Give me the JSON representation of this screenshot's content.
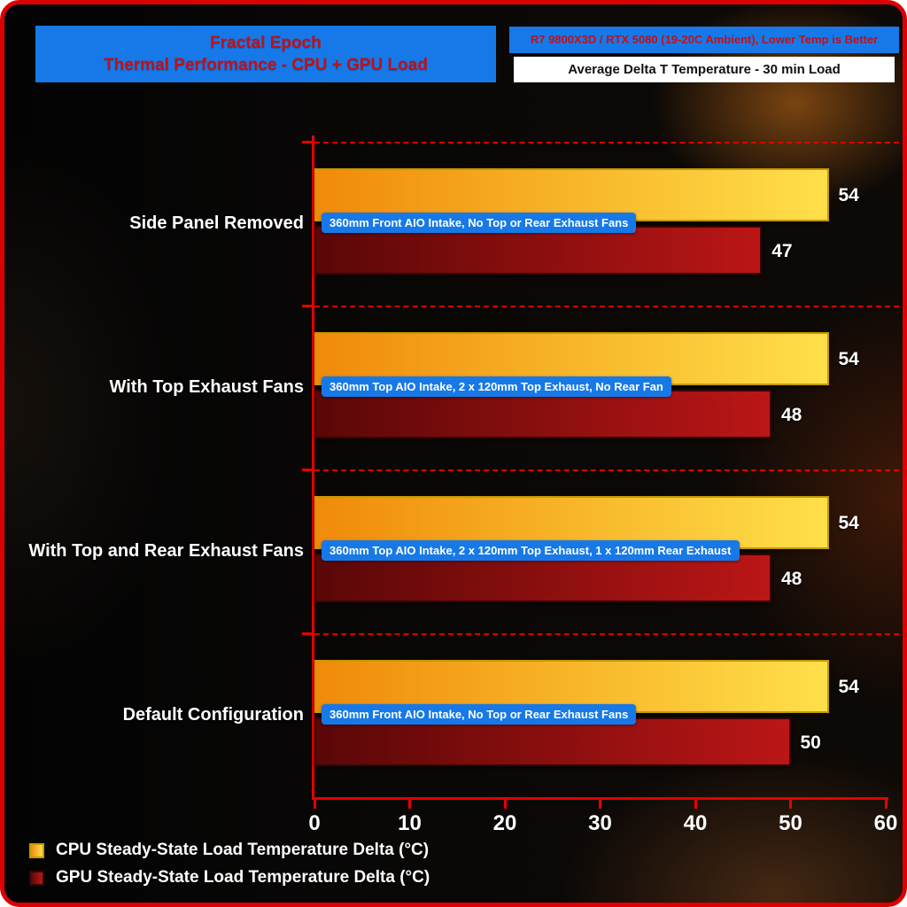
{
  "header": {
    "title_line1": "Fractal Epoch",
    "title_line2": "Thermal Performance - CPU + GPU Load",
    "note_primary": "R7 9800X3D / RTX 5080 (19-20C Ambient), Lower Temp is Better",
    "note_secondary": "Average Delta T Temperature - 30 min Load"
  },
  "chart_data": {
    "type": "bar",
    "orientation": "horizontal",
    "title": "Fractal Epoch Thermal Performance - CPU + GPU Load",
    "categories": [
      "Side Panel Removed",
      "With Top Exhaust Fans",
      "With Top and Rear Exhaust Fans",
      "Default Configuration"
    ],
    "series": [
      {
        "name": "CPU Steady-State Load Temperature Delta (°C)",
        "values": [
          54,
          54,
          54,
          54
        ],
        "color_left": "#f08a0a",
        "color_right": "#ffe04a",
        "border": "#c49a00"
      },
      {
        "name": "GPU Steady-State Load Temperature Delta (°C)",
        "values": [
          47,
          48,
          48,
          50
        ],
        "color_left": "#5a0707",
        "color_right": "#bb1616",
        "border": "#3a0404"
      }
    ],
    "bar_annotations": [
      "360mm Front AIO Intake, No Top or Rear Exhaust Fans",
      "360mm Top AIO Intake, 2 x 120mm Top Exhaust, No Rear Fan",
      "360mm Top AIO Intake, 2 x 120mm Top Exhaust, 1 x 120mm Rear Exhaust",
      "360mm Front AIO Intake, No Top or Rear Exhaust Fans"
    ],
    "xlabel": "",
    "ylabel": "",
    "xlim": [
      0,
      60
    ],
    "xticks": [
      0,
      10,
      20,
      30,
      40,
      50,
      60
    ],
    "grid": "dashed red horizontal separator lines between category groups",
    "legend_position": "bottom-left",
    "value_labels": true
  },
  "colors": {
    "accent_blue": "#1779e8",
    "axis_red": "#e60000",
    "title_text_red": "#c01018",
    "frame_border_red": "#dd0000",
    "note_text_black": "#111111",
    "text_white": "#ffffff"
  }
}
